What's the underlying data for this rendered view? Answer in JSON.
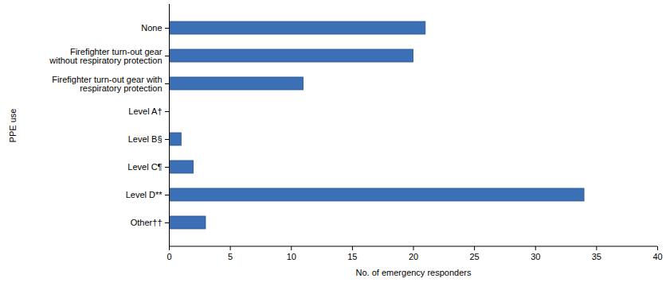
{
  "chart_data": {
    "type": "bar",
    "orientation": "horizontal",
    "categories": [
      "None",
      "Firefighter turn-out gear without respiratory protection",
      "Firefighter turn-out gear with respiratory protection",
      "Level A†",
      "Level B§",
      "Level C¶",
      "Level D**",
      "Other††"
    ],
    "values": [
      21,
      20,
      11,
      0,
      1,
      2,
      34,
      3
    ],
    "color": "#3b6fb6",
    "x_label": "No. of emergency responders",
    "y_label": "PPE use",
    "xlim": [
      0,
      40
    ],
    "xticks": [
      0,
      5,
      10,
      15,
      20,
      25,
      30,
      35,
      40
    ],
    "grid": false
  }
}
